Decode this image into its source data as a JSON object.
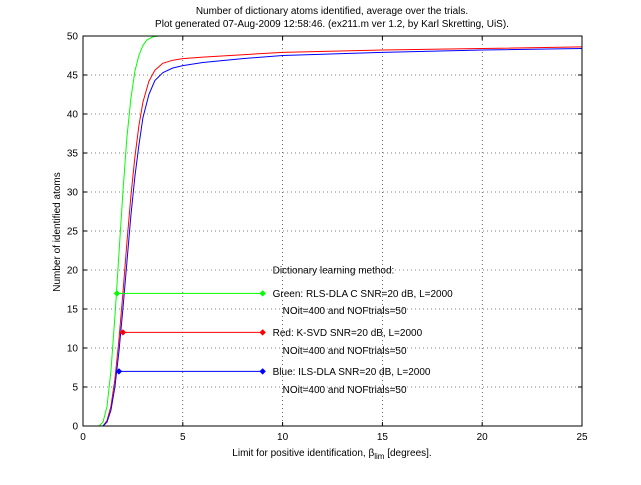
{
  "chart_data": {
    "type": "line",
    "title": [
      "Number of dictionary atoms identified, average over the trials.",
      "Plot generated 07-Aug-2009 12:58:46. (ex211.m ver 1.2, by Karl Skretting, UiS)."
    ],
    "xlabel": {
      "main": "Limit for positive identification, β",
      "sub": "lim",
      "tail": " [degrees]."
    },
    "ylabel": "Number of identified atoms",
    "xlim": [
      0,
      25
    ],
    "ylim": [
      0,
      50
    ],
    "xticks": [
      0,
      5,
      10,
      15,
      20,
      25
    ],
    "yticks": [
      0,
      5,
      10,
      15,
      20,
      25,
      30,
      35,
      40,
      45,
      50
    ],
    "grid": true,
    "series": [
      {
        "name": "RLS-DLA C",
        "color": "#00ff00",
        "x": [
          0,
          0.8,
          1.0,
          1.2,
          1.4,
          1.6,
          1.8,
          2.0,
          2.2,
          2.4,
          2.6,
          2.8,
          3.0,
          3.2,
          3.5,
          3.8,
          4.2
        ],
        "y": [
          0,
          0,
          0.5,
          2.5,
          7,
          14,
          22,
          30,
          37,
          42,
          45.5,
          47.5,
          48.8,
          49.5,
          49.9,
          50,
          50
        ]
      },
      {
        "name": "K-SVD",
        "color": "#ff0000",
        "x": [
          0,
          1.0,
          1.2,
          1.4,
          1.6,
          1.8,
          2.0,
          2.2,
          2.4,
          2.6,
          2.8,
          3.0,
          3.3,
          3.6,
          4.0,
          4.5,
          5.0,
          6.0,
          8.0,
          10.0,
          15.0,
          20.0,
          25.0
        ],
        "y": [
          0,
          0,
          0.7,
          2.5,
          6,
          11,
          17,
          23.5,
          29.5,
          34.5,
          38.5,
          41.5,
          44.2,
          45.6,
          46.5,
          46.9,
          47.1,
          47.3,
          47.6,
          47.9,
          48.2,
          48.4,
          48.6
        ]
      },
      {
        "name": "ILS-DLA",
        "color": "#0000ff",
        "x": [
          0,
          1.0,
          1.2,
          1.4,
          1.6,
          1.8,
          2.0,
          2.2,
          2.4,
          2.6,
          2.8,
          3.0,
          3.3,
          3.6,
          4.0,
          4.5,
          5.0,
          6.0,
          8.0,
          10.0,
          15.0,
          20.0,
          25.0
        ],
        "y": [
          0,
          0,
          0.5,
          2.0,
          5,
          9.5,
          15,
          21,
          27,
          32,
          36,
          39.5,
          42.5,
          44.3,
          45.3,
          45.9,
          46.2,
          46.6,
          47.1,
          47.5,
          47.9,
          48.2,
          48.4
        ]
      }
    ],
    "markers": [
      {
        "color": "#00ff00",
        "x": [
          1.7,
          9.0
        ],
        "y": 17
      },
      {
        "color": "#ff0000",
        "x": [
          2.0,
          9.0
        ],
        "y": 12
      },
      {
        "color": "#0000ff",
        "x": [
          1.8,
          9.0
        ],
        "y": 7
      }
    ],
    "annotations": [
      {
        "text": "Dictionary learning method:",
        "x": 9.5,
        "y": 20
      },
      {
        "text": "Green: RLS-DLA C SNR=20 dB, L=2000",
        "x": 9.5,
        "y": 17
      },
      {
        "text": "NOit=400 and NOFtrials=50",
        "x": 10.0,
        "y": 14.8
      },
      {
        "text": "Red: K-SVD SNR=20 dB, L=2000",
        "x": 9.5,
        "y": 12
      },
      {
        "text": "NOit=400 and NOFtrials=50",
        "x": 10.0,
        "y": 9.7
      },
      {
        "text": "Blue: ILS-DLA SNR=20 dB, L=2000",
        "x": 9.5,
        "y": 7
      },
      {
        "text": "NOit=400 and NOFtrials=50",
        "x": 10.0,
        "y": 4.7
      }
    ]
  }
}
